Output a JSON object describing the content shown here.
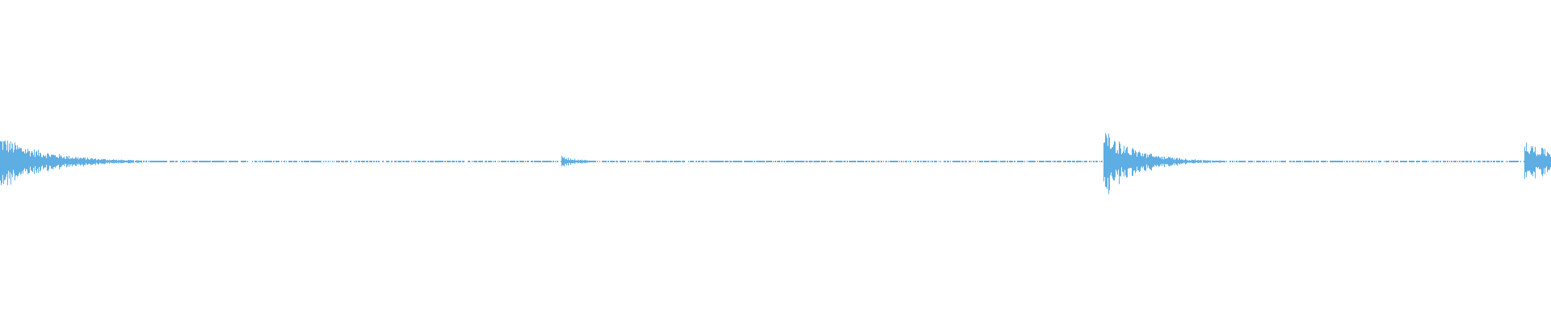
{
  "waveform": {
    "color": "#5eaee3",
    "background": "#ffffff",
    "type": "audio-waveform",
    "events": [
      {
        "onset": 0.0,
        "peak": 0.4,
        "decay": 0.03
      },
      {
        "onset": 0.3615,
        "peak": 0.09,
        "decay": 0.012
      },
      {
        "onset": 0.711,
        "peak": 0.5,
        "decay": 0.022
      },
      {
        "onset": 0.9828,
        "peak": 0.3,
        "decay": 0.03
      }
    ],
    "noise_floor": 0.012
  }
}
